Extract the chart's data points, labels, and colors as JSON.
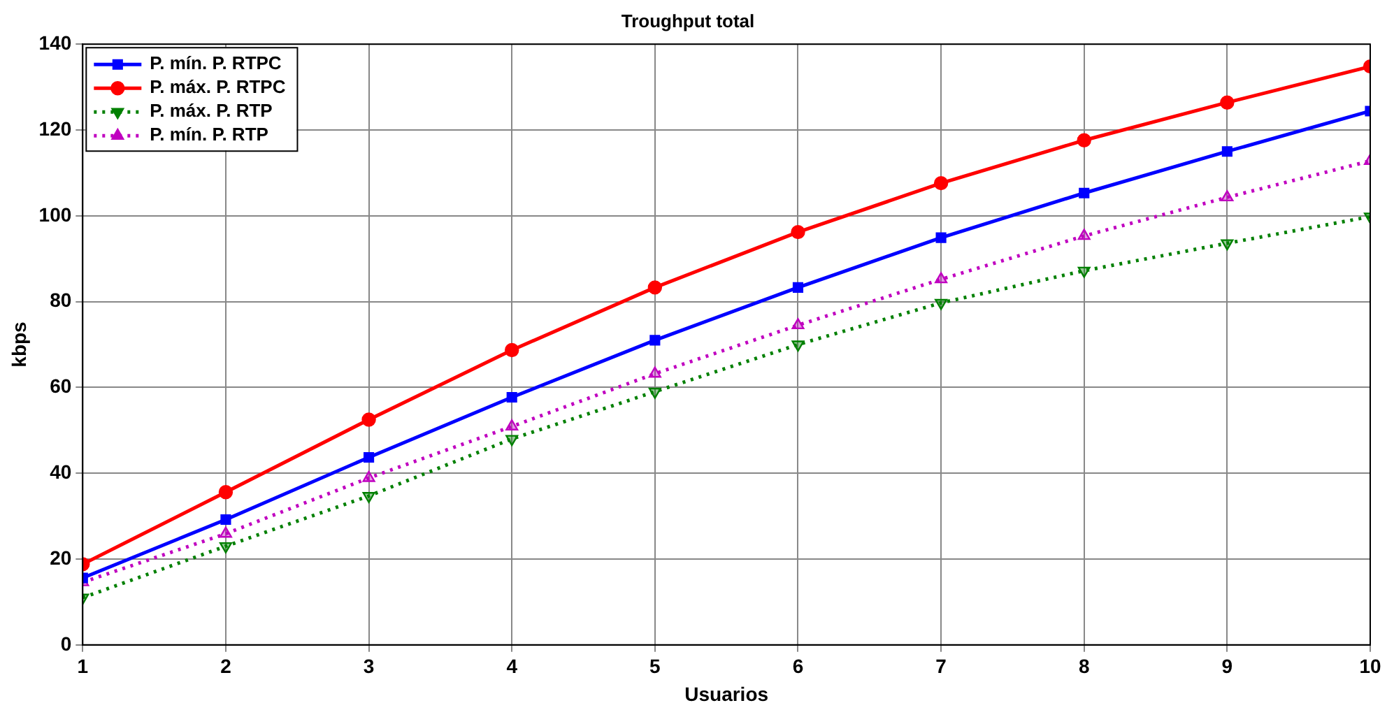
{
  "chart_data": {
    "type": "line",
    "title": "Troughput total",
    "xlabel": "Usuarios",
    "ylabel": "kbps",
    "x": [
      1,
      2,
      3,
      4,
      5,
      6,
      7,
      8,
      9,
      10
    ],
    "series": [
      {
        "name": "P. mín. P. RTPC",
        "color": "#0000ff",
        "marker": "square",
        "line_style": "solid",
        "values": [
          15.6,
          29.2,
          43.7,
          57.7,
          71,
          83.3,
          94.9,
          105.3,
          115,
          124.4
        ]
      },
      {
        "name": "P. máx. P. RTPC",
        "color": "#ff0000",
        "marker": "circle",
        "line_style": "solid",
        "values": [
          18.8,
          35.6,
          52.5,
          68.7,
          83.3,
          96.2,
          107.6,
          117.6,
          126.4,
          134.8
        ]
      },
      {
        "name": "P. máx. P. RTP",
        "color": "#008000",
        "marker": "triangle_down",
        "line_style": "dotted",
        "values": [
          11,
          23,
          34.7,
          48,
          59,
          70,
          79.7,
          87.2,
          93.6,
          99.8
        ]
      },
      {
        "name": "P. mín. P. RTP",
        "color": "#c000c0",
        "marker": "triangle",
        "line_style": "dotted",
        "values": [
          14.6,
          25.9,
          38.9,
          50.9,
          63.2,
          74.5,
          85.2,
          95.3,
          104.3,
          112.8
        ]
      }
    ],
    "xlim": [
      1,
      10
    ],
    "xticks": [
      1,
      2,
      3,
      4,
      5,
      6,
      7,
      8,
      9,
      10
    ],
    "ylim": [
      0,
      140
    ],
    "yticks": [
      0,
      20,
      40,
      60,
      80,
      100,
      120,
      140
    ],
    "grid": true,
    "legend": "top left"
  }
}
